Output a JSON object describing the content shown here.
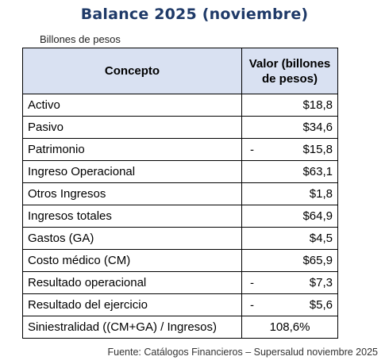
{
  "title": "Balance 2025 (noviembre)",
  "units": "Billones de pesos",
  "table": {
    "headers": [
      "Concepto",
      "Valor (billones de pesos)"
    ],
    "rows": [
      {
        "concept": "Activo",
        "sign": "",
        "value": "$18,8"
      },
      {
        "concept": "Pasivo",
        "sign": "",
        "value": "$34,6"
      },
      {
        "concept": "Patrimonio",
        "sign": "-",
        "value": "$15,8"
      },
      {
        "concept": "Ingreso Operacional",
        "sign": "",
        "value": "$63,1"
      },
      {
        "concept": "Otros Ingresos",
        "sign": "",
        "value": "$1,8"
      },
      {
        "concept": "Ingresos totales",
        "sign": "",
        "value": "$64,9"
      },
      {
        "concept": "Gastos (GA)",
        "sign": "",
        "value": "$4,5"
      },
      {
        "concept": "Costo médico (CM)",
        "sign": "",
        "value": "$65,9"
      },
      {
        "concept": "Resultado operacional",
        "sign": "-",
        "value": "$7,3"
      },
      {
        "concept": "Resultado del ejercicio",
        "sign": "-",
        "value": "$5,6"
      },
      {
        "concept": "Siniestralidad ((CM+GA) / Ingresos)",
        "sign": "",
        "value": "108,6%"
      }
    ]
  },
  "source": "Fuente: Catálogos Financieros – Supersalud noviembre 2025",
  "colors": {
    "title": "#1f3a68",
    "header_bg": "#d9e1f2",
    "border": "#000000"
  }
}
